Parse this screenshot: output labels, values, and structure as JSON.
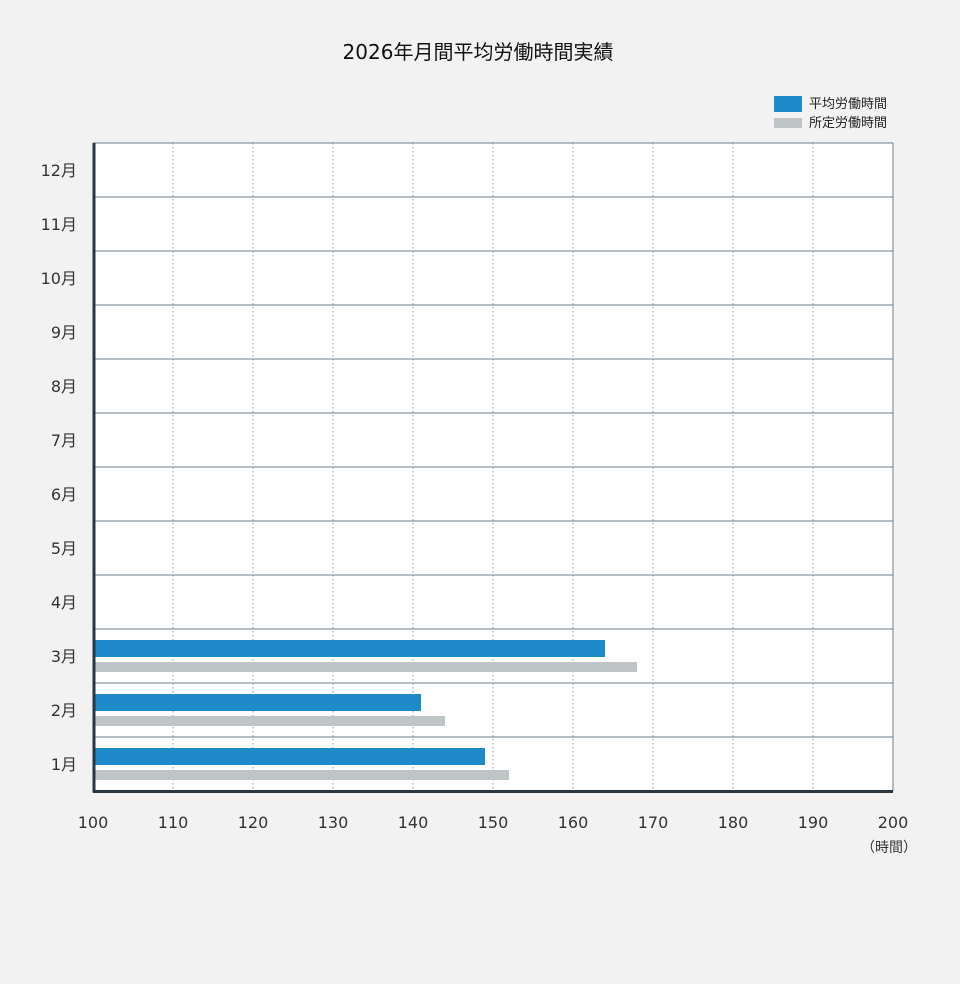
{
  "chart_data": {
    "type": "bar",
    "orientation": "horizontal",
    "title": "2026年月間平均労働時間実績",
    "categories": [
      "1月",
      "2月",
      "3月",
      "4月",
      "5月",
      "6月",
      "7月",
      "8月",
      "9月",
      "10月",
      "11月",
      "12月"
    ],
    "series": [
      {
        "name": "平均労働時間",
        "color": "#1f8ac9",
        "values": [
          149,
          141,
          164,
          null,
          null,
          null,
          null,
          null,
          null,
          null,
          null,
          null
        ]
      },
      {
        "name": "所定労働時間",
        "color": "#bfc4c7",
        "values": [
          152,
          144,
          168,
          null,
          null,
          null,
          null,
          null,
          null,
          null,
          null,
          null
        ]
      }
    ],
    "x_ticks": [
      100,
      110,
      120,
      130,
      140,
      150,
      160,
      170,
      180,
      190,
      200
    ],
    "xlim": [
      100,
      200
    ],
    "x_unit": "（時間）",
    "grid": true,
    "legend_position": "top-right"
  }
}
